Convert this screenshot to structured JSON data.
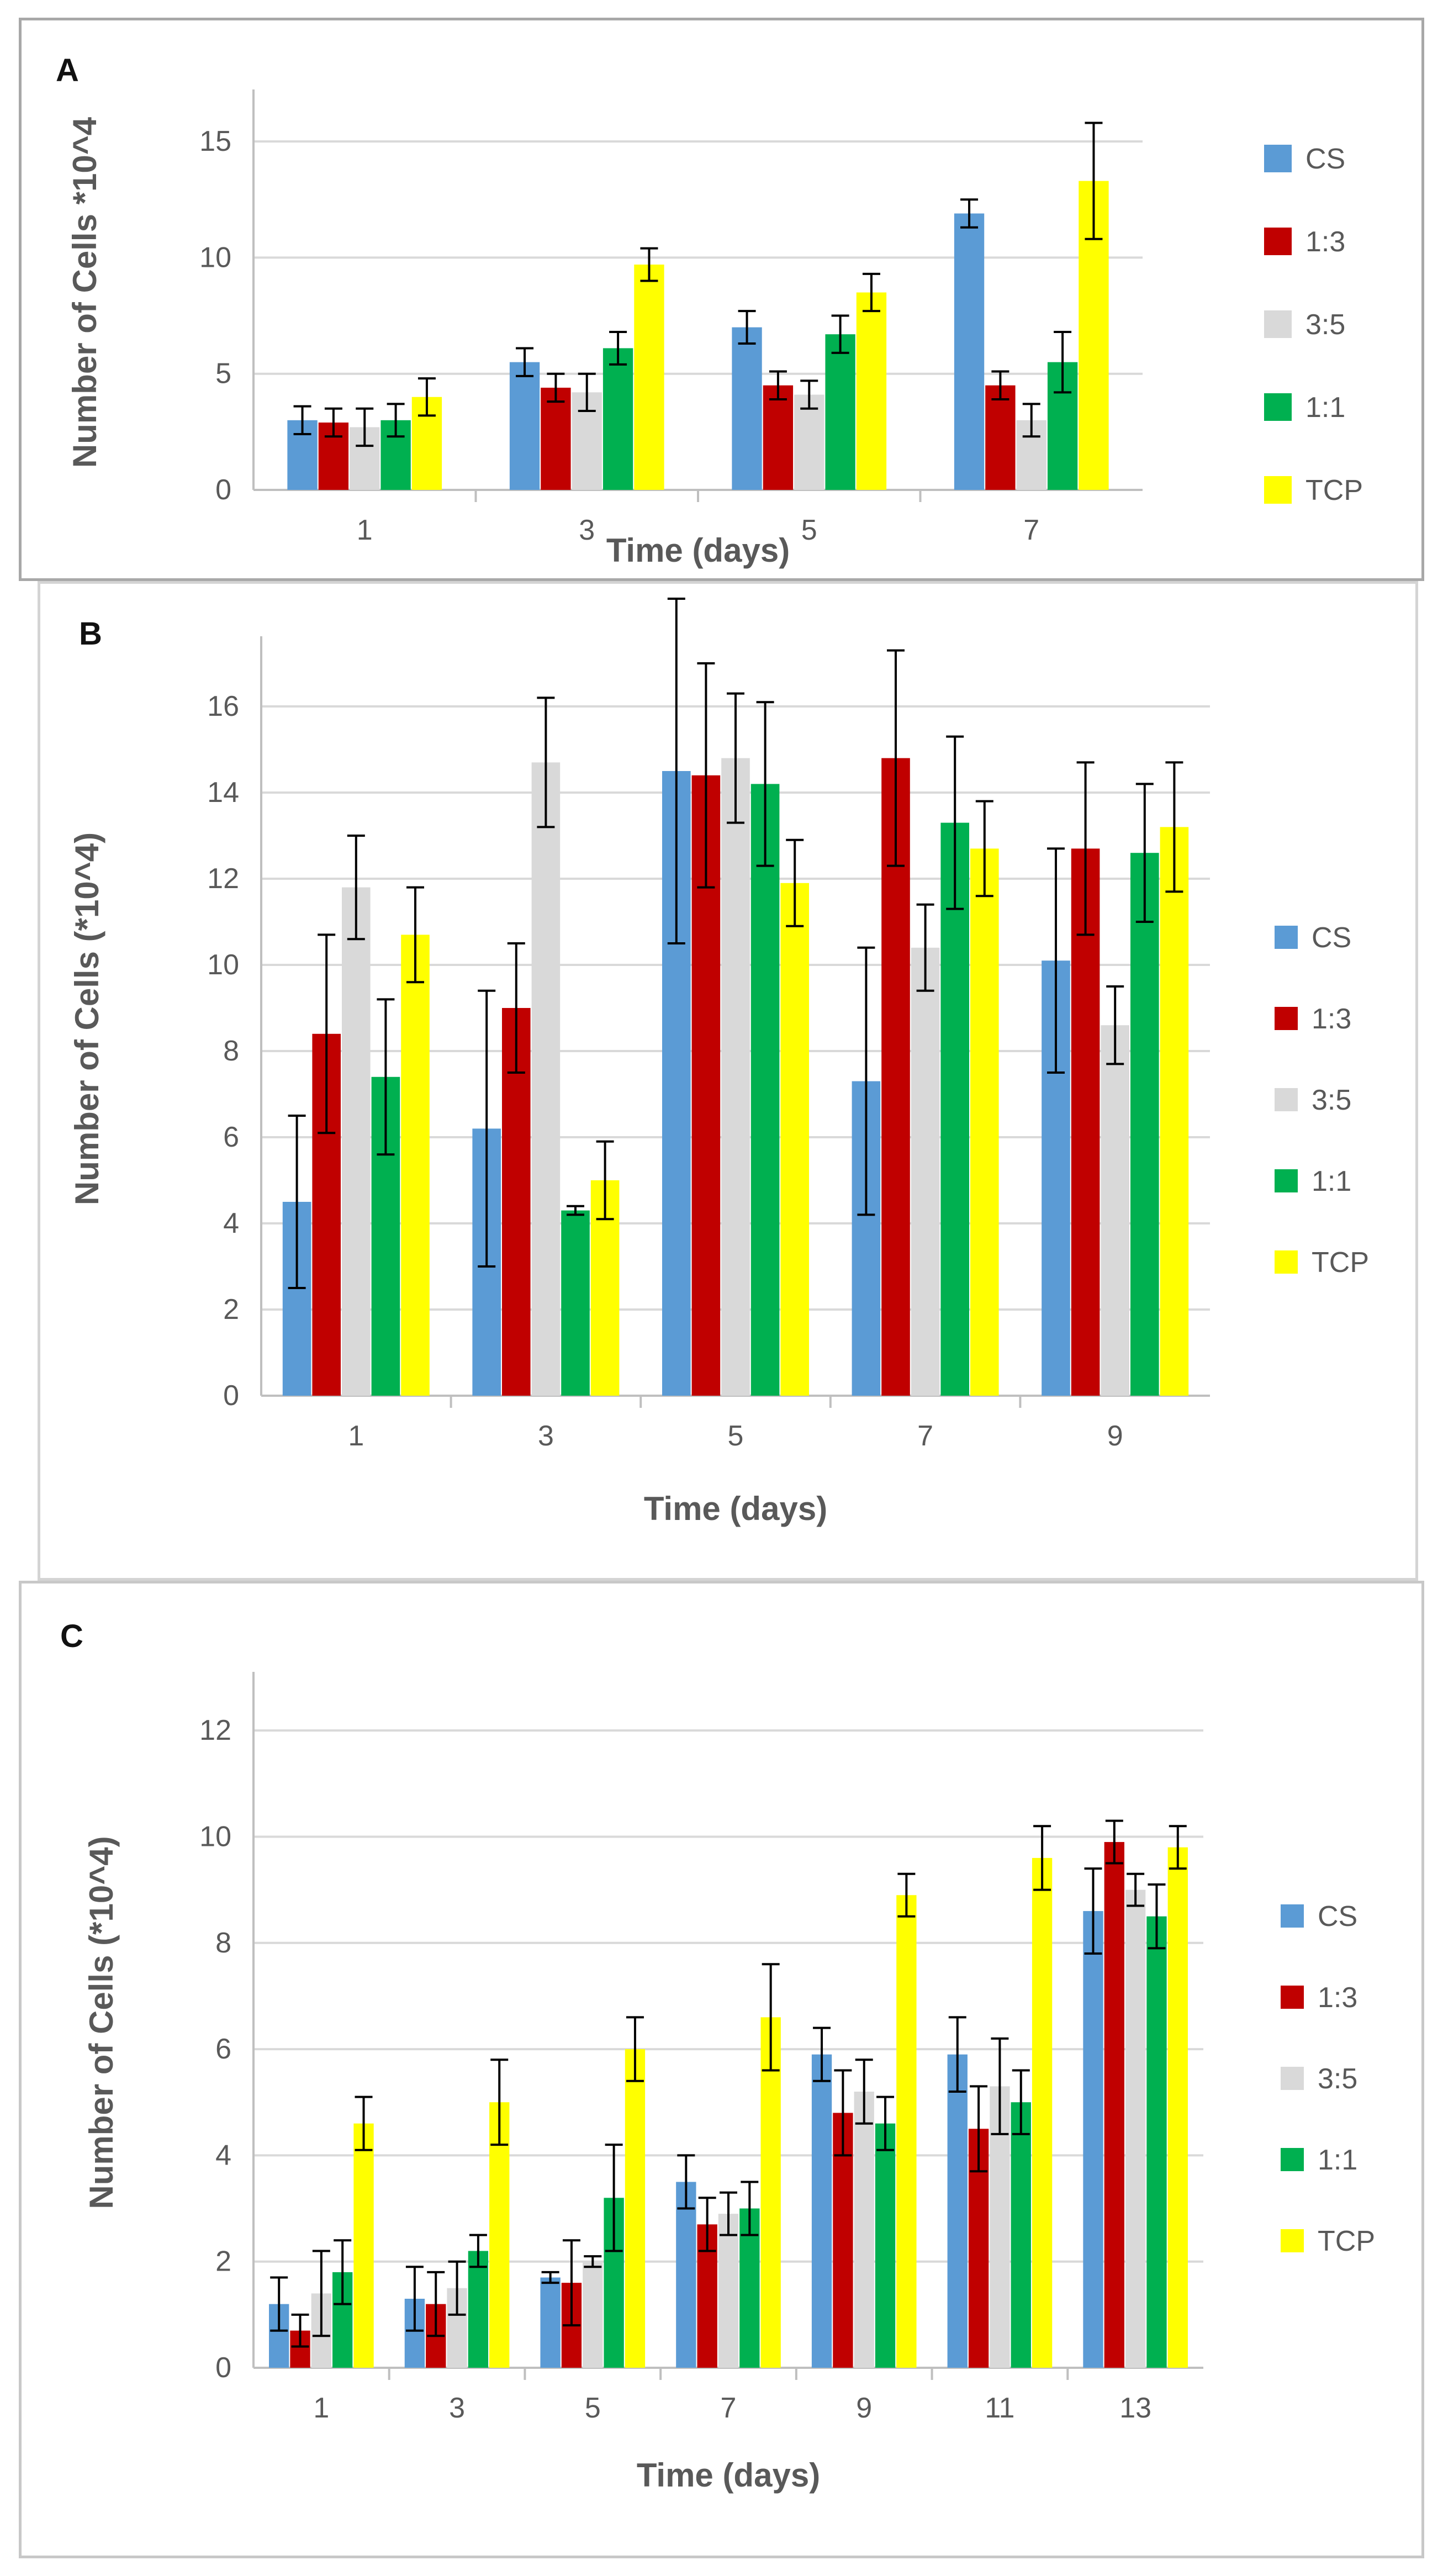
{
  "colors": {
    "CS": "#5B9BD5",
    "1:3": "#C00000",
    "3:5": "#D9D9D9",
    "1:1": "#00B050",
    "TCP": "#FFFF00",
    "grid": "#d9d9d9",
    "axis": "#bfbfbf",
    "error_bar": "#000000"
  },
  "chart_data": [
    {
      "panel": "A",
      "type": "bar",
      "xlabel": "Time (days)",
      "ylabel": "Number of Cells *10^4",
      "ylim": [
        0,
        17
      ],
      "yticks": [
        0,
        5,
        10,
        15
      ],
      "yticklabels": [
        "0",
        "5",
        "10",
        "15"
      ],
      "categories": [
        "1",
        "3",
        "5",
        "7"
      ],
      "legend_position": "right",
      "series": [
        {
          "name": "CS",
          "values": [
            3.0,
            5.5,
            7.0,
            11.9
          ],
          "errors": [
            0.6,
            0.6,
            0.7,
            0.6
          ]
        },
        {
          "name": "1:3",
          "values": [
            2.9,
            4.4,
            4.5,
            4.5
          ],
          "errors": [
            0.6,
            0.6,
            0.6,
            0.6
          ]
        },
        {
          "name": "3:5",
          "values": [
            2.7,
            4.2,
            4.1,
            3.0
          ],
          "errors": [
            0.8,
            0.8,
            0.6,
            0.7
          ]
        },
        {
          "name": "1:1",
          "values": [
            3.0,
            6.1,
            6.7,
            5.5
          ],
          "errors": [
            0.7,
            0.7,
            0.8,
            1.3
          ]
        },
        {
          "name": "TCP",
          "values": [
            4.0,
            9.7,
            8.5,
            13.3
          ],
          "errors": [
            0.8,
            0.7,
            0.8,
            2.5
          ]
        }
      ]
    },
    {
      "panel": "B",
      "type": "bar",
      "xlabel": "Time (days)",
      "ylabel": "Number of Cells (*10^4)",
      "ylim": [
        0,
        17.5
      ],
      "yticks": [
        0,
        2,
        4,
        6,
        8,
        10,
        12,
        14,
        16
      ],
      "yticklabels": [
        "0",
        "2",
        "4",
        "6",
        "8",
        "10",
        "12",
        "14",
        "16"
      ],
      "categories": [
        "1",
        "3",
        "5",
        "7",
        "9"
      ],
      "legend_position": "right",
      "series": [
        {
          "name": "CS",
          "values": [
            4.5,
            6.2,
            14.5,
            7.3,
            10.1
          ],
          "errors": [
            2.0,
            3.2,
            4.0,
            3.1,
            2.6
          ]
        },
        {
          "name": "1:3",
          "values": [
            8.4,
            9.0,
            14.4,
            14.8,
            12.7
          ],
          "errors": [
            2.3,
            1.5,
            2.6,
            2.5,
            2.0
          ]
        },
        {
          "name": "3:5",
          "values": [
            11.8,
            14.7,
            14.8,
            10.4,
            8.6
          ],
          "errors": [
            1.2,
            1.5,
            1.5,
            1.0,
            0.9
          ]
        },
        {
          "name": "1:1",
          "values": [
            7.4,
            4.3,
            14.2,
            13.3,
            12.6
          ],
          "errors": [
            1.8,
            0.1,
            1.9,
            2.0,
            1.6
          ]
        },
        {
          "name": "TCP",
          "values": [
            10.7,
            5.0,
            11.9,
            12.7,
            13.2
          ],
          "errors": [
            1.1,
            0.9,
            1.0,
            1.1,
            1.5
          ]
        }
      ]
    },
    {
      "panel": "C",
      "type": "bar",
      "xlabel": "Time (days)",
      "ylabel": "Number of Cells (*10^4)",
      "ylim": [
        0,
        13
      ],
      "yticks": [
        0,
        2,
        4,
        6,
        8,
        10,
        12
      ],
      "yticklabels": [
        "0",
        "2",
        "4",
        "6",
        "8",
        "10",
        "12"
      ],
      "categories": [
        "1",
        "3",
        "5",
        "7",
        "9",
        "11",
        "13"
      ],
      "legend_position": "right",
      "series": [
        {
          "name": "CS",
          "values": [
            1.2,
            1.3,
            1.7,
            3.5,
            5.9,
            5.9,
            8.6
          ],
          "errors": [
            0.5,
            0.6,
            0.1,
            0.5,
            0.5,
            0.7,
            0.8
          ]
        },
        {
          "name": "1:3",
          "values": [
            0.7,
            1.2,
            1.6,
            2.7,
            4.8,
            4.5,
            9.9
          ],
          "errors": [
            0.3,
            0.6,
            0.8,
            0.5,
            0.8,
            0.8,
            0.4
          ]
        },
        {
          "name": "3:5",
          "values": [
            1.4,
            1.5,
            2.0,
            2.9,
            5.2,
            5.3,
            9.0
          ],
          "errors": [
            0.8,
            0.5,
            0.1,
            0.4,
            0.6,
            0.9,
            0.3
          ]
        },
        {
          "name": "1:1",
          "values": [
            1.8,
            2.2,
            3.2,
            3.0,
            4.6,
            5.0,
            8.5
          ],
          "errors": [
            0.6,
            0.3,
            1.0,
            0.5,
            0.5,
            0.6,
            0.6
          ]
        },
        {
          "name": "TCP",
          "values": [
            4.6,
            5.0,
            6.0,
            6.6,
            8.9,
            9.6,
            9.8
          ],
          "errors": [
            0.5,
            0.8,
            0.6,
            1.0,
            0.4,
            0.6,
            0.4
          ]
        }
      ]
    }
  ]
}
